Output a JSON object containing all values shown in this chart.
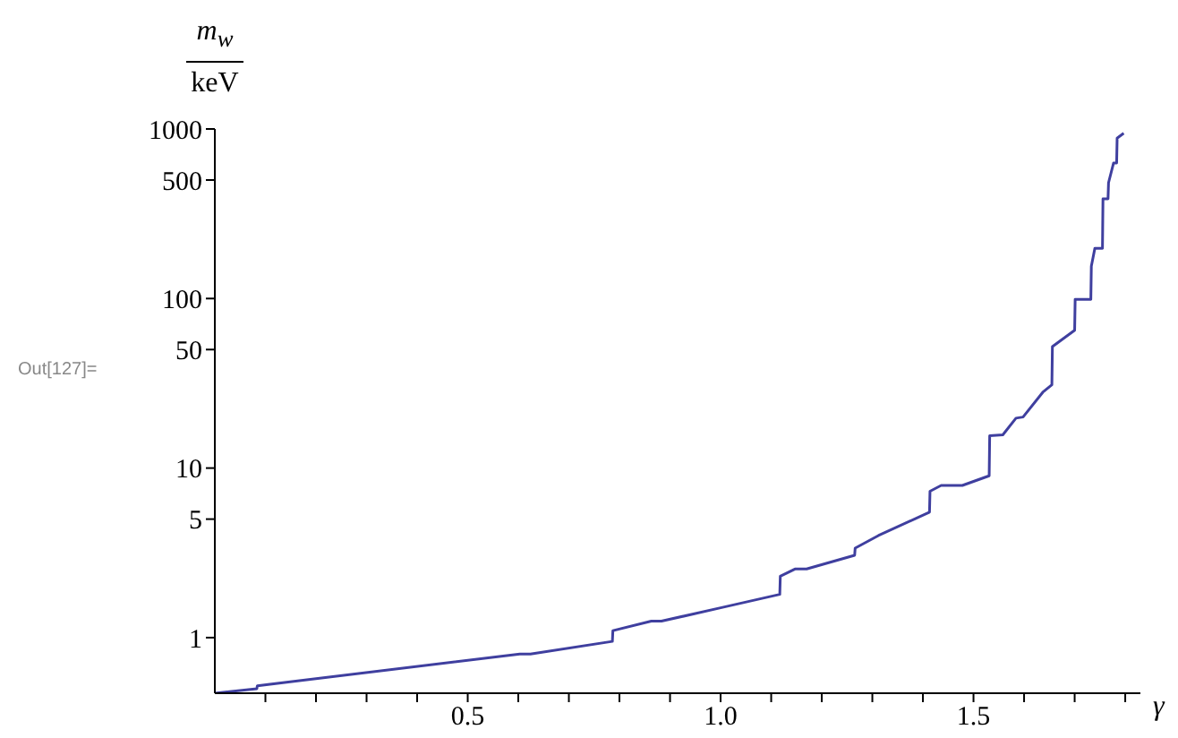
{
  "chart_data": {
    "type": "line",
    "ylabel": "m$_{w}$ keV",
    "xlabel": "γ",
    "annotations": [
      "Out[127]="
    ],
    "log": "y",
    "marker": "none",
    "line_style": "solid",
    "xlim": [
      0,
      1.83
    ],
    "ylim": [
      0.47,
      1000
    ],
    "xticks": [
      {
        "value": 0.1,
        "label": null
      },
      {
        "value": 0.2,
        "label": null
      },
      {
        "value": 0.3,
        "label": null
      },
      {
        "value": 0.4,
        "label": null
      },
      {
        "value": 0.5,
        "label": "0.5"
      },
      {
        "value": 0.6,
        "label": null
      },
      {
        "value": 0.7,
        "label": null
      },
      {
        "value": 0.8,
        "label": null
      },
      {
        "value": 0.9,
        "label": null
      },
      {
        "value": 1.0,
        "label": "1.0"
      },
      {
        "value": 1.1,
        "label": null
      },
      {
        "value": 1.2,
        "label": null
      },
      {
        "value": 1.3,
        "label": null
      },
      {
        "value": 1.4,
        "label": null
      },
      {
        "value": 1.5,
        "label": "1.5"
      },
      {
        "value": 1.6,
        "label": null
      },
      {
        "value": 1.7,
        "label": null
      },
      {
        "value": 1.8,
        "label": null
      }
    ],
    "yticks": [
      1,
      5,
      10,
      50,
      100,
      500,
      1000
    ],
    "series": [
      {
        "color": "#3f3f9f",
        "x": [
          0,
          0.083,
          0.084,
          0.603,
          0.624,
          0.786,
          0.787,
          0.863,
          0.883,
          1.0,
          1.117,
          1.118,
          1.147,
          1.17,
          1.265,
          1.266,
          1.312,
          1.413,
          1.414,
          1.436,
          1.478,
          1.531,
          1.532,
          1.558,
          1.584,
          1.598,
          1.637,
          1.655,
          1.656,
          1.7,
          1.701,
          1.732,
          1.733,
          1.74,
          1.755,
          1.756,
          1.766,
          1.767,
          1.777,
          1.783,
          1.784,
          1.797
        ],
        "values": [
          0.47,
          0.5,
          0.52,
          0.8,
          0.8,
          0.95,
          1.1,
          1.25,
          1.25,
          1.5,
          1.8,
          2.3,
          2.54,
          2.54,
          3.06,
          3.37,
          4.0,
          5.5,
          7.3,
          7.9,
          7.9,
          9.0,
          15.5,
          15.7,
          19.7,
          20,
          28,
          31,
          52,
          65,
          99,
          99,
          155,
          198,
          198,
          387,
          387,
          482,
          630,
          630,
          883,
          944
        ]
      }
    ]
  }
}
